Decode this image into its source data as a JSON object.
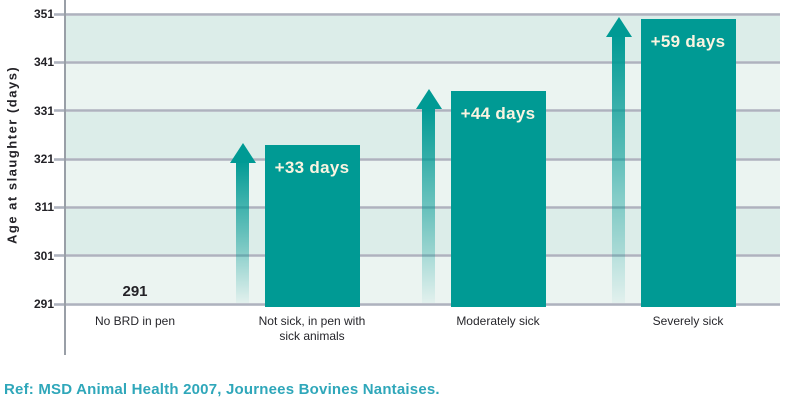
{
  "chart_data": {
    "type": "bar",
    "title": "",
    "xlabel": "",
    "ylabel": "Age at slaughter (days)",
    "ylim": [
      291,
      351
    ],
    "yticks": [
      351,
      341,
      331,
      321,
      311,
      301,
      291
    ],
    "grid": true,
    "legend": false,
    "categories": [
      "No BRD in pen",
      "Not sick, in pen with sick animals",
      "Moderately sick",
      "Severely sick"
    ],
    "bars": [
      {
        "category": "No BRD in pen",
        "value": 291,
        "added_days": 0,
        "bar_label": "",
        "annotation": "291",
        "show_bar": false,
        "show_arrow": false
      },
      {
        "category": "Not sick, in pen with sick animals",
        "value": 324,
        "added_days": 33,
        "bar_label": "+33 days",
        "annotation": "",
        "show_bar": true,
        "show_arrow": true
      },
      {
        "category": "Moderately sick",
        "value": 335,
        "added_days": 44,
        "bar_label": "+44 days",
        "annotation": "",
        "show_bar": true,
        "show_arrow": true
      },
      {
        "category": "Severely sick",
        "value": 350,
        "added_days": 59,
        "bar_label": "+59 days",
        "annotation": "",
        "show_bar": true,
        "show_arrow": true
      }
    ]
  },
  "colors": {
    "bar": "#009a94",
    "band_dark": "#dcede9",
    "band_light": "#ebf4f1",
    "gridline": "#a9adb9",
    "axis": "#999fa7",
    "bar_label": "#faf4e1",
    "text": "#232227",
    "ref": "#2fa7ba"
  },
  "footer": {
    "ref_text": "Ref: MSD Animal Health 2007, Journees Bovines Nantaises."
  }
}
